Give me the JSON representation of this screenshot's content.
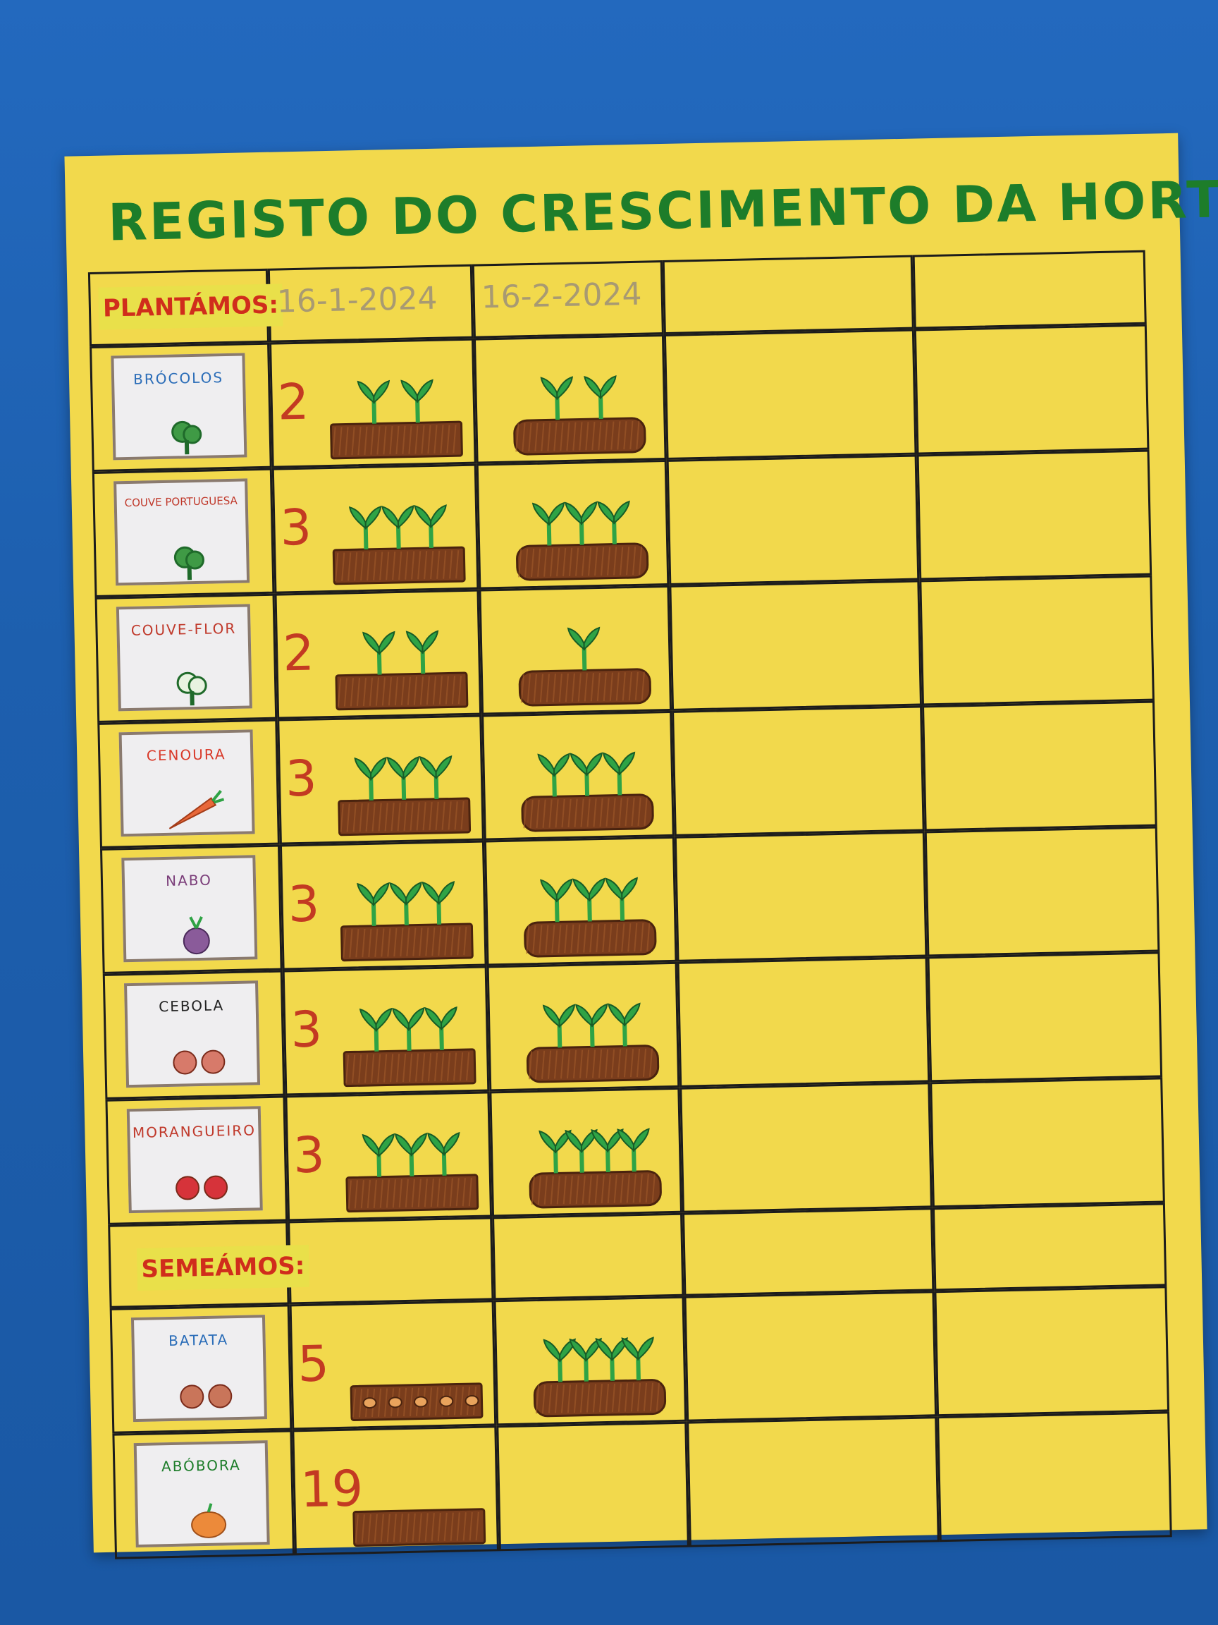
{
  "poster": {
    "title": "REGISTO DO CRESCIMENTO DA HORTA",
    "section_planted": "PLANTÁMOS:",
    "section_sown": "SEMEÁMOS:",
    "dates": [
      "16-1-2024",
      "16-2-2024"
    ],
    "colors": {
      "paper": "#f2d94c",
      "title": "#1d7d2a",
      "labels": "#d02d1c",
      "soil": "#7a3d1c",
      "sprout": "#2fa345",
      "wall": "#1f63b4"
    },
    "plants": [
      {
        "name": "BRÓCOLOS",
        "count": "2",
        "color": "#2b6db8",
        "icon": "broccoli-icon"
      },
      {
        "name": "COUVE PORTUGUESA",
        "count": "3",
        "color": "#c0392b",
        "icon": "cabbage-icon"
      },
      {
        "name": "COUVE-FLOR",
        "count": "2",
        "color": "#c0392b",
        "icon": "cauliflower-icon"
      },
      {
        "name": "CENOURA",
        "count": "3",
        "color": "#d93a2a",
        "icon": "carrot-icon"
      },
      {
        "name": "NABO",
        "count": "3",
        "color": "#7b3e7a",
        "icon": "turnip-icon"
      },
      {
        "name": "CEBOLA",
        "count": "3",
        "color": "#222222",
        "icon": "onion-icon"
      },
      {
        "name": "MORANGUEIRO",
        "count": "3",
        "color": "#c0392b",
        "icon": "strawberry-icon"
      }
    ],
    "sown": [
      {
        "name": "BATATA",
        "count": "5",
        "color": "#2b6db8",
        "icon": "potato-icon"
      },
      {
        "name": "ABÓBORA",
        "count": "19",
        "color": "#1d7d2a",
        "icon": "pumpkin-icon"
      }
    ]
  }
}
